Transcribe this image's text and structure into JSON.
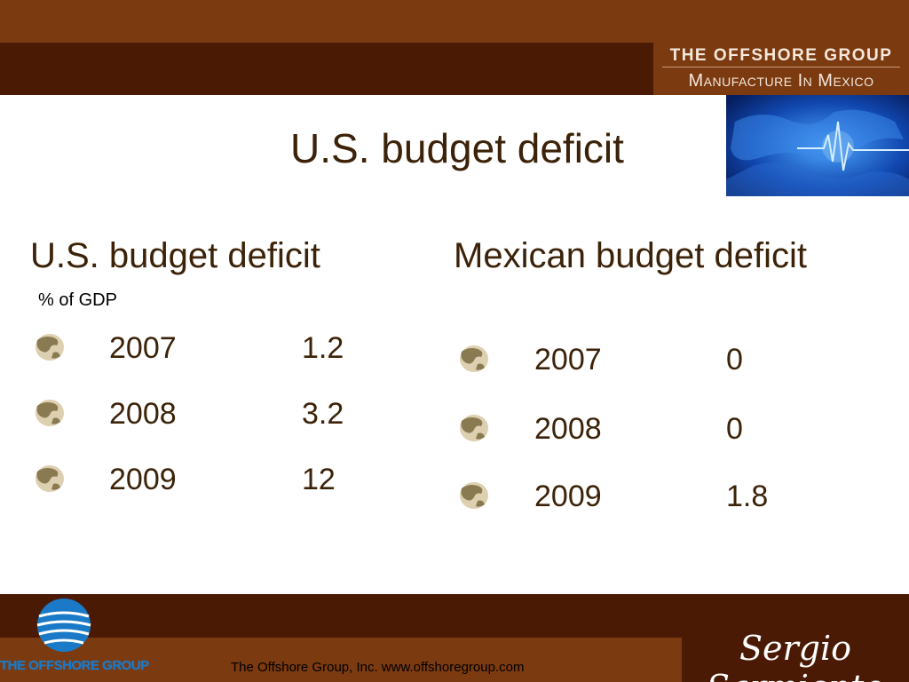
{
  "header": {
    "brand_line1": "THE OFFSHORE GROUP",
    "brand_line2": "Manufacture In Mexico"
  },
  "slide": {
    "title": "U.S. budget deficit"
  },
  "left_column": {
    "heading": "U.S. budget deficit",
    "subtitle": "% of GDP",
    "rows": [
      {
        "year": "2007",
        "value": "1.2"
      },
      {
        "year": "2008",
        "value": "3.2"
      },
      {
        "year": "2009",
        "value": "12"
      }
    ]
  },
  "right_column": {
    "heading": "Mexican budget deficit",
    "rows": [
      {
        "year": "2007",
        "value": "0"
      },
      {
        "year": "2008",
        "value": "0"
      },
      {
        "year": "2009",
        "value": "1.8"
      }
    ]
  },
  "footer": {
    "text": "The Offshore Group, Inc. www.offshoregroup.com",
    "signature": "Sergio Sarmiento",
    "logo_text": "THE OFFSHORE GROUP"
  },
  "colors": {
    "band_brown": "#7b3a10",
    "band_dark": "#4b1a05",
    "text_brown": "#3b2208"
  }
}
